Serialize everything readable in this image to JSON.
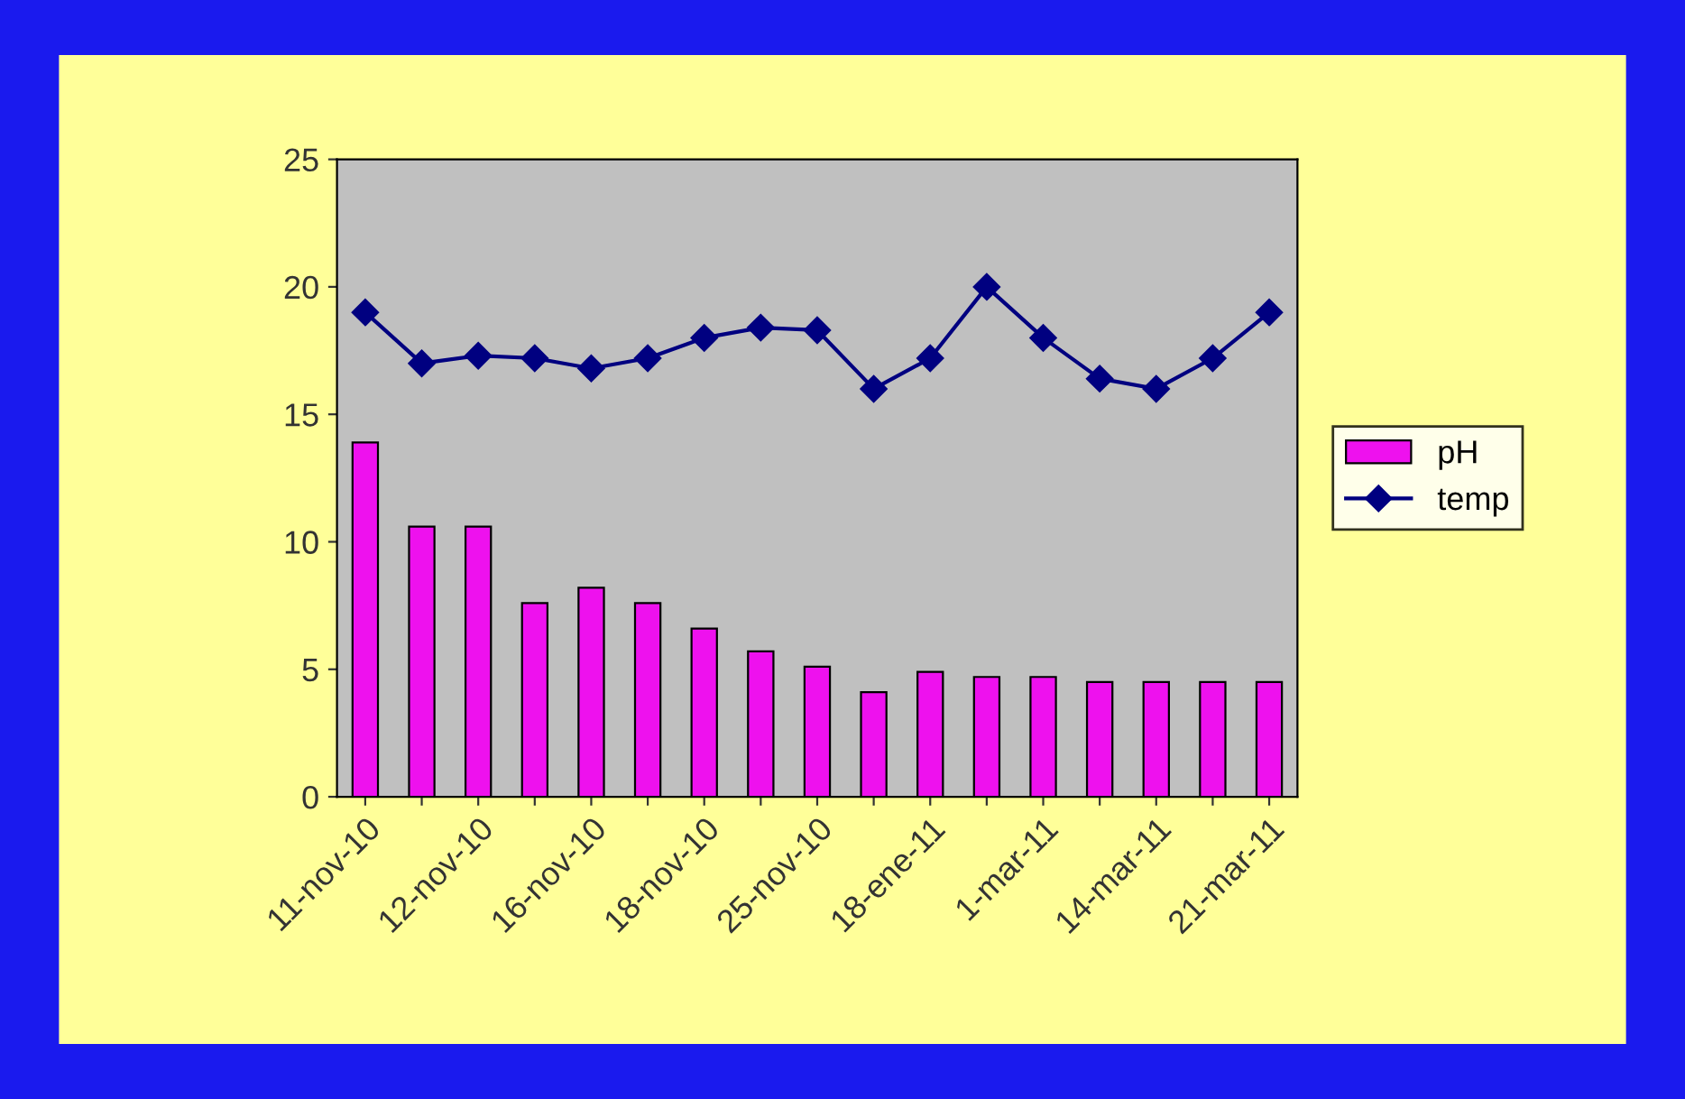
{
  "chart_data": {
    "type": "bar",
    "categories": [
      "11-nov-10",
      null,
      "12-nov-10",
      null,
      "16-nov-10",
      null,
      "18-nov-10",
      null,
      "25-nov-10",
      null,
      "18-ene-11",
      null,
      "1-mar-11",
      null,
      "14-mar-11",
      null,
      "21-mar-11"
    ],
    "series": [
      {
        "name": "pH",
        "color": "#ee11ee",
        "values": [
          13.9,
          10.6,
          10.6,
          7.6,
          8.2,
          7.6,
          6.6,
          5.7,
          5.1,
          4.1,
          4.9,
          4.7,
          4.7,
          4.5,
          4.5,
          4.5,
          4.5
        ]
      },
      {
        "name": "temp",
        "type": "line",
        "color": "#000080",
        "marker": "diamond",
        "values": [
          19.0,
          17.0,
          17.3,
          17.2,
          16.8,
          17.2,
          18.0,
          18.4,
          18.3,
          16.0,
          17.2,
          20.0,
          18.0,
          16.4,
          16.0,
          17.2,
          19.0
        ]
      }
    ],
    "ylim": [
      0,
      25
    ],
    "yticks": [
      0,
      5,
      10,
      15,
      20,
      25
    ],
    "grid": false,
    "legend": "right"
  }
}
